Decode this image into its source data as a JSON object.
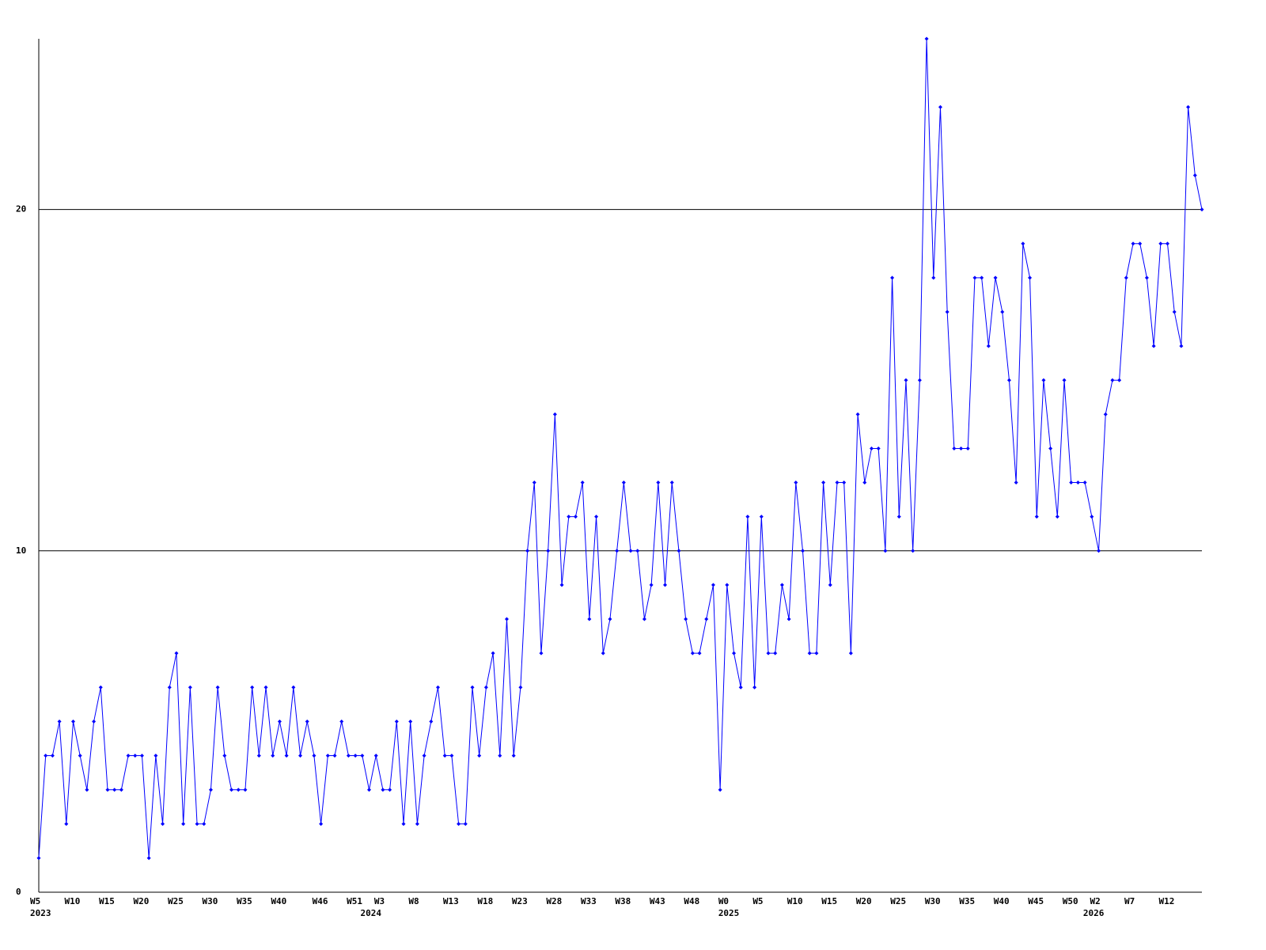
{
  "chart_data": {
    "type": "line",
    "categories": [
      "W5",
      null,
      null,
      null,
      null,
      "W10",
      null,
      null,
      null,
      null,
      "W15",
      null,
      null,
      null,
      null,
      "W20",
      null,
      null,
      null,
      null,
      "W25",
      null,
      null,
      null,
      null,
      "W30",
      null,
      null,
      null,
      null,
      "W35",
      null,
      null,
      null,
      null,
      "W40",
      null,
      null,
      null,
      null,
      null,
      "W46",
      null,
      null,
      null,
      null,
      "W51",
      null,
      null,
      null,
      "W3",
      null,
      null,
      null,
      null,
      "W8",
      null,
      null,
      null,
      null,
      "W13",
      null,
      null,
      null,
      null,
      "W18",
      null,
      null,
      null,
      null,
      "W23",
      null,
      null,
      null,
      null,
      "W28",
      null,
      null,
      null,
      null,
      "W33",
      null,
      null,
      null,
      null,
      "W38",
      null,
      null,
      null,
      null,
      "W43",
      null,
      null,
      null,
      null,
      "W48",
      null,
      null,
      null,
      null,
      "W0",
      null,
      null,
      null,
      null,
      "W5",
      null,
      null,
      null,
      null,
      "W10",
      null,
      null,
      null,
      null,
      "W15",
      null,
      null,
      null,
      null,
      "W20",
      null,
      null,
      null,
      null,
      "W25",
      null,
      null,
      null,
      null,
      "W30",
      null,
      null,
      null,
      null,
      "W35",
      null,
      null,
      null,
      null,
      "W40",
      null,
      null,
      null,
      null,
      "W45",
      null,
      null,
      null,
      null,
      "W50",
      null,
      null,
      null,
      "W2",
      null,
      null,
      null,
      null,
      "W7",
      null,
      null,
      null,
      null,
      "W12",
      null,
      null,
      null,
      null,
      null
    ],
    "years": [
      "2023",
      null,
      null,
      null,
      null,
      null,
      null,
      null,
      null,
      null,
      null,
      null,
      null,
      null,
      null,
      null,
      null,
      null,
      null,
      null,
      null,
      null,
      null,
      null,
      null,
      null,
      null,
      null,
      null,
      null,
      null,
      null,
      null,
      null,
      null,
      null,
      null,
      null,
      null,
      null,
      null,
      null,
      null,
      null,
      null,
      null,
      null,
      null,
      "2024",
      null,
      null,
      null,
      null,
      null,
      null,
      null,
      null,
      null,
      null,
      null,
      null,
      null,
      null,
      null,
      null,
      null,
      null,
      null,
      null,
      null,
      null,
      null,
      null,
      null,
      null,
      null,
      null,
      null,
      null,
      null,
      null,
      null,
      null,
      null,
      null,
      null,
      null,
      null,
      null,
      null,
      null,
      null,
      null,
      null,
      null,
      null,
      null,
      null,
      null,
      null,
      "2025",
      null,
      null,
      null,
      null,
      null,
      null,
      null,
      null,
      null,
      null,
      null,
      null,
      null,
      null,
      null,
      null,
      null,
      null,
      null,
      null,
      null,
      null,
      null,
      null,
      null,
      null,
      null,
      null,
      null,
      null,
      null,
      null,
      null,
      null,
      null,
      null,
      null,
      null,
      null,
      null,
      null,
      null,
      null,
      null,
      null,
      null,
      null,
      null,
      null,
      null,
      null,
      null,
      "2026",
      null,
      null,
      null,
      null,
      null,
      null,
      null,
      null,
      null,
      null,
      null,
      null,
      null,
      null,
      null,
      null
    ],
    "values": [
      1,
      4,
      4,
      5,
      2,
      5,
      4,
      3,
      5,
      6,
      3,
      3,
      3,
      4,
      4,
      4,
      1,
      4,
      2,
      6,
      7,
      2,
      6,
      2,
      2,
      3,
      6,
      4,
      3,
      3,
      3,
      6,
      4,
      6,
      4,
      5,
      4,
      6,
      4,
      5,
      4,
      2,
      4,
      4,
      5,
      4,
      4,
      4,
      3,
      4,
      3,
      3,
      5,
      2,
      5,
      2,
      4,
      5,
      6,
      4,
      4,
      2,
      2,
      6,
      4,
      6,
      7,
      4,
      8,
      4,
      6,
      10,
      12,
      7,
      10,
      14,
      9,
      11,
      11,
      12,
      8,
      11,
      7,
      8,
      10,
      12,
      10,
      10,
      8,
      9,
      12,
      9,
      12,
      10,
      8,
      7,
      7,
      8,
      9,
      3,
      9,
      7,
      6,
      11,
      6,
      11,
      7,
      7,
      9,
      8,
      12,
      10,
      7,
      7,
      12,
      9,
      12,
      12,
      7,
      14,
      12,
      13,
      13,
      10,
      18,
      11,
      15,
      10,
      15,
      25,
      18,
      23,
      17,
      13,
      13,
      13,
      18,
      18,
      16,
      18,
      17,
      15,
      12,
      19,
      18,
      11,
      15,
      13,
      11,
      15,
      12,
      12,
      12,
      11,
      10,
      14,
      15,
      15,
      18,
      19,
      19,
      18,
      16,
      19,
      19,
      17,
      16,
      23,
      21,
      20
    ],
    "color": "#0000ff",
    "ylim": [
      0,
      25
    ],
    "yticks": [
      0,
      10,
      20
    ],
    "grid": true
  }
}
